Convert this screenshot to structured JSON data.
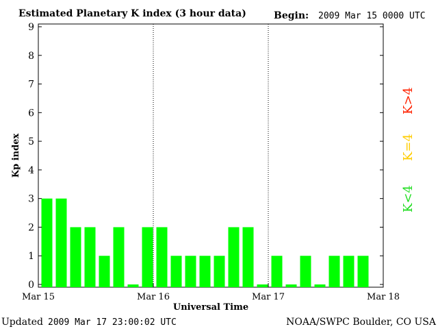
{
  "header": {
    "title": "Estimated Planetary K index (3 hour data)",
    "begin_label": "Begin:",
    "begin_value": "2009 Mar 15 0000 UTC"
  },
  "footer": {
    "updated_label": "Updated",
    "updated_value": "2009 Mar 17 23:00:02 UTC",
    "source": "NOAA/SWPC Boulder, CO USA"
  },
  "legend": {
    "items": [
      {
        "text": "K<4",
        "color": "#22dd22"
      },
      {
        "text": "K=4",
        "color": "#ffcc00"
      },
      {
        "text": "K>4",
        "color": "#ff2200"
      }
    ]
  },
  "colors": {
    "bar_low": "#00ff00",
    "bar_mid": "#ffcc00",
    "bar_high": "#ff2200"
  },
  "chart_data": {
    "type": "bar",
    "title": "Estimated Planetary K index (3 hour data)",
    "xlabel": "Universal Time",
    "ylabel": "Kp index",
    "ylim": [
      0,
      9
    ],
    "yticks": [
      0,
      1,
      2,
      3,
      4,
      5,
      6,
      7,
      8,
      9
    ],
    "xtick_labels": [
      "Mar 15",
      "Mar 16",
      "Mar 17",
      "Mar 18"
    ],
    "day_separators": "dotted",
    "categories": [
      "Mar 15 00",
      "Mar 15 03",
      "Mar 15 06",
      "Mar 15 09",
      "Mar 15 12",
      "Mar 15 15",
      "Mar 15 18",
      "Mar 15 21",
      "Mar 16 00",
      "Mar 16 03",
      "Mar 16 06",
      "Mar 16 09",
      "Mar 16 12",
      "Mar 16 15",
      "Mar 16 18",
      "Mar 16 21",
      "Mar 17 00",
      "Mar 17 03",
      "Mar 17 06",
      "Mar 17 09",
      "Mar 17 12",
      "Mar 17 15",
      "Mar 17 18"
    ],
    "values": [
      3,
      3,
      2,
      2,
      1,
      2,
      0,
      2,
      2,
      1,
      1,
      1,
      1,
      2,
      2,
      0,
      1,
      0,
      1,
      0,
      1,
      1,
      1
    ]
  }
}
